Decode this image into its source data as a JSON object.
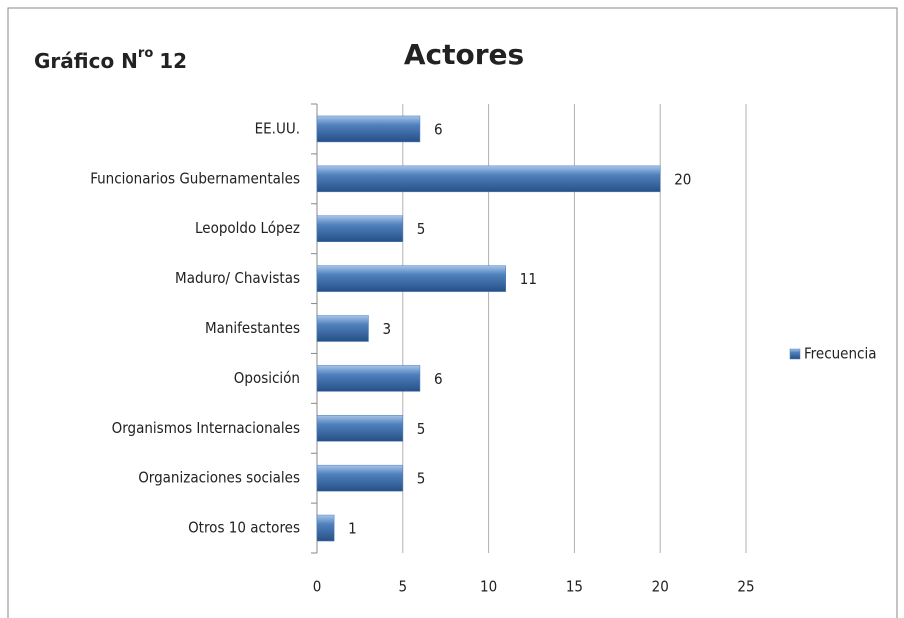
{
  "chart_data": {
    "type": "bar",
    "orientation": "horizontal",
    "title": "Actores",
    "annotation_parts": [
      "Gráfico N",
      "ro",
      "12"
    ],
    "categories": [
      "EE.UU.",
      "Funcionarios Gubernamentales",
      "Leopoldo López",
      "Maduro/ Chavistas",
      "Manifestantes",
      "Oposición",
      "Organismos Internacionales",
      "Organizaciones sociales",
      "Otros 10 actores"
    ],
    "series": [
      {
        "name": "Frecuencia",
        "color": "#4f81bd",
        "values": [
          6,
          20,
          5,
          11,
          3,
          6,
          5,
          5,
          1
        ]
      }
    ],
    "xlim": [
      0,
      25
    ],
    "xticks": [
      0,
      5,
      10,
      15,
      20,
      25
    ],
    "grid": true,
    "legend": "right"
  }
}
